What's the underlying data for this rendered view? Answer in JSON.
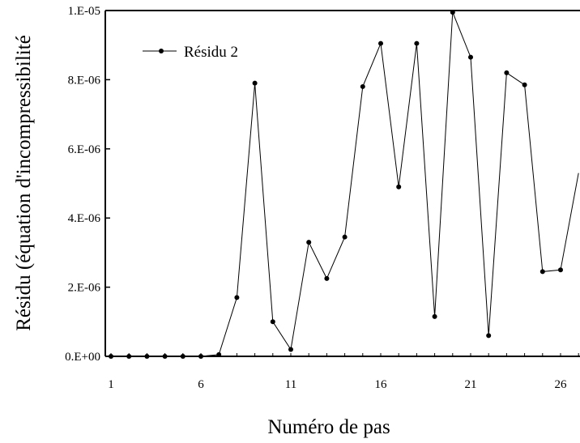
{
  "chart_data": {
    "type": "line",
    "xlabel": "Numéro de pas",
    "ylabel": "Résidu (équation d'incompressibilité",
    "xlim": [
      1,
      27
    ],
    "ylim": [
      0,
      1e-05
    ],
    "x_ticks": [
      1,
      6,
      11,
      16,
      21,
      26
    ],
    "x_tick_labels": [
      "1",
      "6",
      "11",
      "16",
      "21",
      "26"
    ],
    "y_ticks": [
      0,
      2e-06,
      4e-06,
      6e-06,
      8e-06,
      1e-05
    ],
    "y_tick_labels": [
      "0.E+00",
      "2.E-06",
      "4.E-06",
      "6.E-06",
      "8.E-06",
      "1.E-05"
    ],
    "legend_position": "top-left",
    "grid": false,
    "series": [
      {
        "name": "Résidu 2",
        "color": "#000000",
        "marker": "circle",
        "x": [
          1,
          2,
          3,
          4,
          5,
          6,
          7,
          8,
          9,
          10,
          11,
          12,
          13,
          14,
          15,
          16,
          17,
          18,
          19,
          20,
          21,
          22,
          23,
          24,
          25,
          26,
          27
        ],
        "y": [
          0,
          0,
          0,
          0,
          0,
          0,
          5e-08,
          1.7e-06,
          7.9e-06,
          1e-06,
          2e-07,
          3.3e-06,
          2.25e-06,
          3.45e-06,
          7.8e-06,
          9.05e-06,
          4.9e-06,
          9.05e-06,
          1.15e-06,
          9.95e-06,
          8.65e-06,
          6e-07,
          8.2e-06,
          7.85e-06,
          2.45e-06,
          2.5e-06,
          5.3e-06
        ],
        "marker_last_point": false
      }
    ]
  }
}
